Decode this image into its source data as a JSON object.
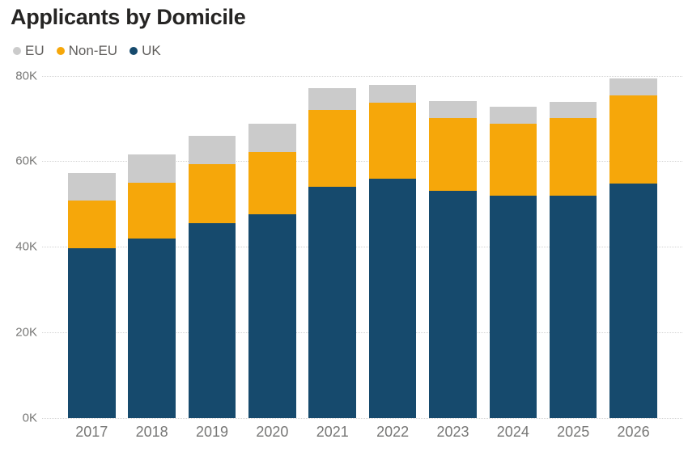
{
  "chart": {
    "title": "Applicants by Domicile"
  },
  "legend": {
    "items": [
      {
        "label": "EU",
        "color": "#cbcbcb"
      },
      {
        "label": "Non-EU",
        "color": "#f6a70a"
      },
      {
        "label": "UK",
        "color": "#164a6d"
      }
    ]
  },
  "chart_data": {
    "type": "bar",
    "stacked": true,
    "title": "Applicants by Domicile",
    "xlabel": "",
    "ylabel": "",
    "units": "thousands of applicants",
    "categories": [
      "2017",
      "2018",
      "2019",
      "2020",
      "2021",
      "2022",
      "2023",
      "2024",
      "2025",
      "2026"
    ],
    "series": [
      {
        "name": "UK",
        "color": "#164a6d",
        "values": [
          39.6,
          42.0,
          45.5,
          47.6,
          54.0,
          56.0,
          53.0,
          52.0,
          52.0,
          54.7
        ]
      },
      {
        "name": "Non-EU",
        "color": "#f6a70a",
        "values": [
          11.3,
          12.9,
          13.9,
          14.6,
          18.0,
          17.6,
          17.1,
          16.7,
          18.0,
          20.6
        ]
      },
      {
        "name": "EU",
        "color": "#cbcbcb",
        "values": [
          6.4,
          6.6,
          6.6,
          6.5,
          5.0,
          4.3,
          3.9,
          4.1,
          3.8,
          4.0
        ]
      }
    ],
    "totals": [
      57.3,
      61.5,
      66.0,
      68.7,
      77.0,
      77.9,
      74.0,
      72.8,
      73.8,
      79.3
    ],
    "ylim": [
      0,
      80
    ],
    "yticks": [
      {
        "value": 0,
        "label": "0K"
      },
      {
        "value": 20,
        "label": "20K"
      },
      {
        "value": 40,
        "label": "40K"
      },
      {
        "value": 60,
        "label": "60K"
      },
      {
        "value": 80,
        "label": "80K"
      }
    ],
    "grid": "horizontal-dotted",
    "legend_position": "top-left"
  }
}
